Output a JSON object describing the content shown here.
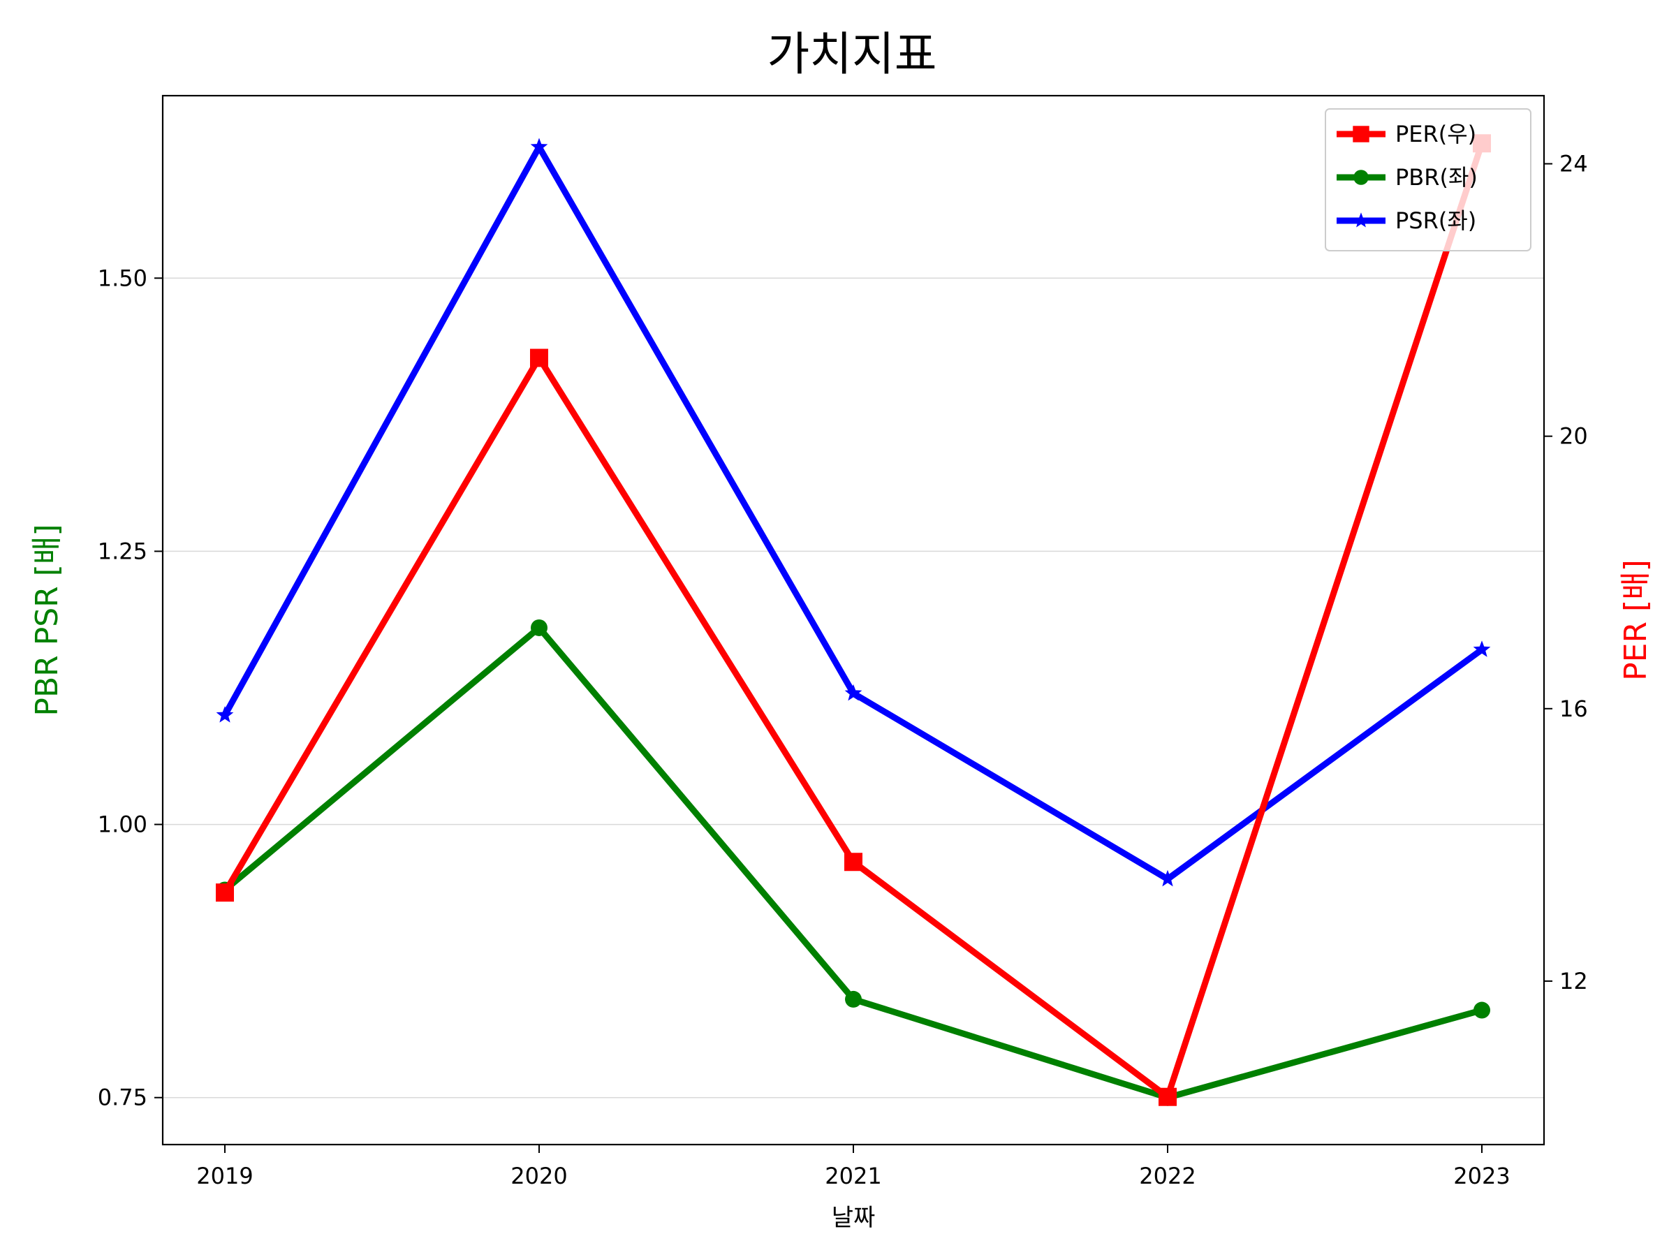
{
  "chart_data": {
    "type": "line",
    "title": "가치지표",
    "xlabel": "날짜",
    "ylabel_left": "PBR PSR [배]",
    "ylabel_right": "PER [배]",
    "categories": [
      "2019",
      "2020",
      "2021",
      "2022",
      "2023"
    ],
    "left_axis": {
      "ylim": [
        0.707,
        1.667
      ],
      "ticks": [
        0.75,
        1.0,
        1.25,
        1.5
      ],
      "tick_labels": [
        "0.75",
        "1.00",
        "1.25",
        "1.50"
      ],
      "grid": true
    },
    "right_axis": {
      "ylim": [
        9.6,
        25.0
      ],
      "ticks": [
        12,
        16,
        20,
        24
      ],
      "tick_labels": [
        "12",
        "16",
        "20",
        "24"
      ]
    },
    "series": [
      {
        "name": "PER(우)",
        "axis": "right",
        "color": "#ff0000",
        "marker": "square",
        "values": [
          13.3,
          21.15,
          13.75,
          10.3,
          24.3
        ]
      },
      {
        "name": "PBR(좌)",
        "axis": "left",
        "color": "#008000",
        "marker": "circle",
        "values": [
          0.94,
          1.18,
          0.84,
          0.75,
          0.83
        ]
      },
      {
        "name": "PSR(좌)",
        "axis": "left",
        "color": "#0000ff",
        "marker": "star",
        "values": [
          1.1,
          1.62,
          1.12,
          0.95,
          1.16
        ]
      }
    ],
    "legend_order": [
      0,
      1,
      2
    ],
    "legend_position": "top-right"
  }
}
